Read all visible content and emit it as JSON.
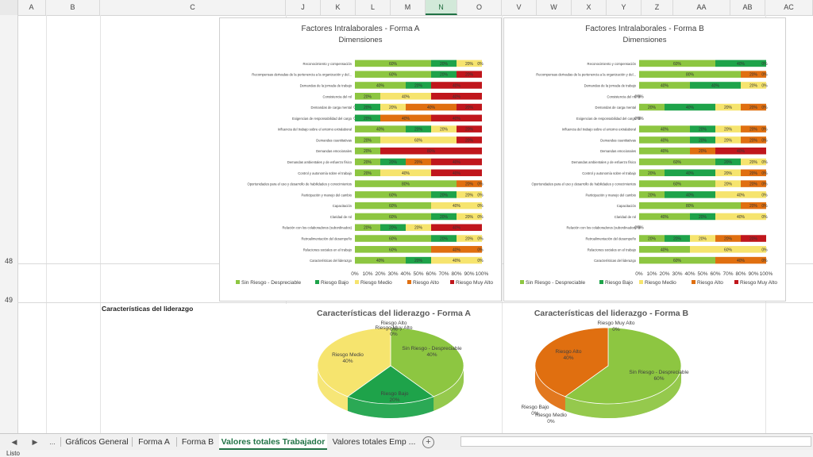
{
  "columns": [
    "A",
    "B",
    "C",
    "J",
    "K",
    "L",
    "M",
    "N",
    "O",
    "V",
    "W",
    "X",
    "Y",
    "Z",
    "AA",
    "AB",
    "AC"
  ],
  "selected_column": "N",
  "rows": [
    "48",
    "49"
  ],
  "cells": {
    "section_label": "Características del liderazgo"
  },
  "legend": [
    {
      "name": "Sin Riesgo - Despreciable",
      "color": "#8dc641"
    },
    {
      "name": "Riesgo Bajo",
      "color": "#1ea34a"
    },
    {
      "name": "Riesgo Medio",
      "color": "#f6e46e"
    },
    {
      "name": "Riesgo Alto",
      "color": "#e06f10"
    },
    {
      "name": "Riesgo Muy Alto",
      "color": "#c0161c"
    }
  ],
  "chart_data": [
    {
      "type": "bar",
      "title": "Factores Intralaborales - Forma A",
      "subtitle": "Dimensiones",
      "stacked_percent": true,
      "x_ticks": [
        "0%",
        "10%",
        "20%",
        "30%",
        "40%",
        "50%",
        "60%",
        "70%",
        "80%",
        "90%",
        "100%"
      ],
      "categories": [
        "Reconocimiento y compensación",
        "Recompensas derivadas de la pertenencia a la organización y del...",
        "Demandas de la jornada de trabajo",
        "Consistencia del rol",
        "Demandas de carga mental",
        "Exigencias de responsabilidad del cargo",
        "Influencia del trabajo sobre el entorno extralaboral",
        "Demandas cuantitativas",
        "Demandas emocionales",
        "Demandas ambientales y de esfuerzo físico",
        "Control y autonomía sobre el trabajo",
        "Oportunidades para el uso y desarrollo de habilidades y conocimientos",
        "Participación y manejo del cambio",
        "Capacitación",
        "Claridad de rol",
        "Relación con los colaboradores (subordinados)",
        "Retroalimentación del desempeño",
        "Relaciones sociales en el trabajo",
        "Características del liderazgo"
      ],
      "series": [
        {
          "name": "Sin Riesgo - Despreciable",
          "values": [
            60,
            60,
            40,
            20,
            0,
            0,
            40,
            20,
            20,
            20,
            20,
            80,
            60,
            60,
            60,
            20,
            60,
            60,
            40
          ]
        },
        {
          "name": "Riesgo Bajo",
          "values": [
            20,
            20,
            20,
            0,
            20,
            20,
            20,
            0,
            0,
            20,
            0,
            0,
            20,
            0,
            20,
            20,
            20,
            0,
            20
          ]
        },
        {
          "name": "Riesgo Medio",
          "values": [
            20,
            0,
            0,
            40,
            20,
            0,
            20,
            60,
            0,
            0,
            40,
            0,
            20,
            40,
            20,
            20,
            20,
            0,
            40
          ]
        },
        {
          "name": "Riesgo Alto",
          "values": [
            0,
            0,
            0,
            0,
            40,
            40,
            0,
            0,
            0,
            20,
            0,
            20,
            0,
            0,
            0,
            0,
            0,
            40,
            0
          ]
        },
        {
          "name": "Riesgo Muy Alto",
          "values": [
            0,
            20,
            40,
            40,
            20,
            40,
            20,
            20,
            80,
            40,
            40,
            0,
            0,
            0,
            0,
            40,
            0,
            0,
            0
          ]
        }
      ]
    },
    {
      "type": "bar",
      "title": "Factores Intralaborales - Forma B",
      "subtitle": "Dimensiones",
      "stacked_percent": true,
      "x_ticks": [
        "0%",
        "10%",
        "20%",
        "30%",
        "40%",
        "50%",
        "60%",
        "70%",
        "80%",
        "90%",
        "100%"
      ],
      "categories": [
        "Reconocimiento y compensación",
        "Recompensas derivadas de la pertenencia a la organización y del...",
        "Demandas de la jornada de trabajo",
        "Consistencia del rol",
        "Demandas de carga mental",
        "Exigencias de responsabilidad del cargo",
        "Influencia del trabajo sobre el entorno extralaboral",
        "Demandas cuantitativas",
        "Demandas emocionales",
        "Demandas ambientales y de esfuerzo físico",
        "Control y autonomía sobre el trabajo",
        "Oportunidades para el uso y desarrollo de habilidades y conocimientos",
        "Participación y manejo del cambio",
        "Capacitación",
        "Claridad de rol",
        "Relación con los colaboradores (subordinados)",
        "Retroalimentación del desempeño",
        "Relaciones sociales en el trabajo",
        "Características del liderazgo"
      ],
      "series": [
        {
          "name": "Sin Riesgo - Despreciable",
          "values": [
            60,
            80,
            40,
            0,
            20,
            0,
            40,
            40,
            40,
            60,
            20,
            60,
            20,
            80,
            40,
            0,
            20,
            40,
            60
          ]
        },
        {
          "name": "Riesgo Bajo",
          "values": [
            40,
            0,
            40,
            0,
            40,
            0,
            20,
            20,
            0,
            20,
            40,
            0,
            40,
            0,
            20,
            0,
            20,
            0,
            0
          ]
        },
        {
          "name": "Riesgo Medio",
          "values": [
            0,
            0,
            20,
            0,
            20,
            0,
            20,
            20,
            0,
            20,
            20,
            20,
            40,
            0,
            40,
            0,
            20,
            60,
            0
          ]
        },
        {
          "name": "Riesgo Alto",
          "values": [
            0,
            20,
            0,
            0,
            20,
            0,
            20,
            20,
            20,
            0,
            20,
            20,
            0,
            20,
            0,
            0,
            20,
            0,
            40
          ]
        },
        {
          "name": "Riesgo Muy Alto",
          "values": [
            0,
            0,
            0,
            0,
            0,
            0,
            0,
            0,
            40,
            0,
            0,
            0,
            0,
            0,
            0,
            0,
            20,
            0,
            0
          ]
        }
      ]
    },
    {
      "type": "pie",
      "title": "Características del liderazgo - Forma A",
      "labels": [
        "Sin Riesgo - Despreciable",
        "Riesgo Bajo",
        "Riesgo Medio",
        "Riesgo Alto",
        "Riesgo Muy Alto"
      ],
      "values": [
        40,
        20,
        40,
        0,
        0
      ],
      "value_labels": [
        "40%",
        "20%",
        "40%",
        "0%",
        "0%"
      ]
    },
    {
      "type": "pie",
      "title": "Características del liderazgo - Forma B",
      "labels": [
        "Sin Riesgo - Despreciable",
        "Riesgo Bajo",
        "Riesgo Medio",
        "Riesgo Alto",
        "Riesgo Muy Alto"
      ],
      "values": [
        60,
        0,
        0,
        40,
        0
      ],
      "value_labels": [
        "60%",
        "0%",
        "0%",
        "40%",
        "0%"
      ]
    }
  ],
  "sheet_tabs": [
    {
      "label": "Gráficos General",
      "active": false
    },
    {
      "label": "Forma A",
      "active": false
    },
    {
      "label": "Forma B",
      "active": false
    },
    {
      "label": "Valores totales Trabajador",
      "active": true
    },
    {
      "label": "Valores totales Emp ...",
      "active": false
    }
  ],
  "nav": {
    "prev": "◀",
    "next": "▶",
    "more": "...",
    "add": "+"
  },
  "status": {
    "ready": "Listo"
  }
}
